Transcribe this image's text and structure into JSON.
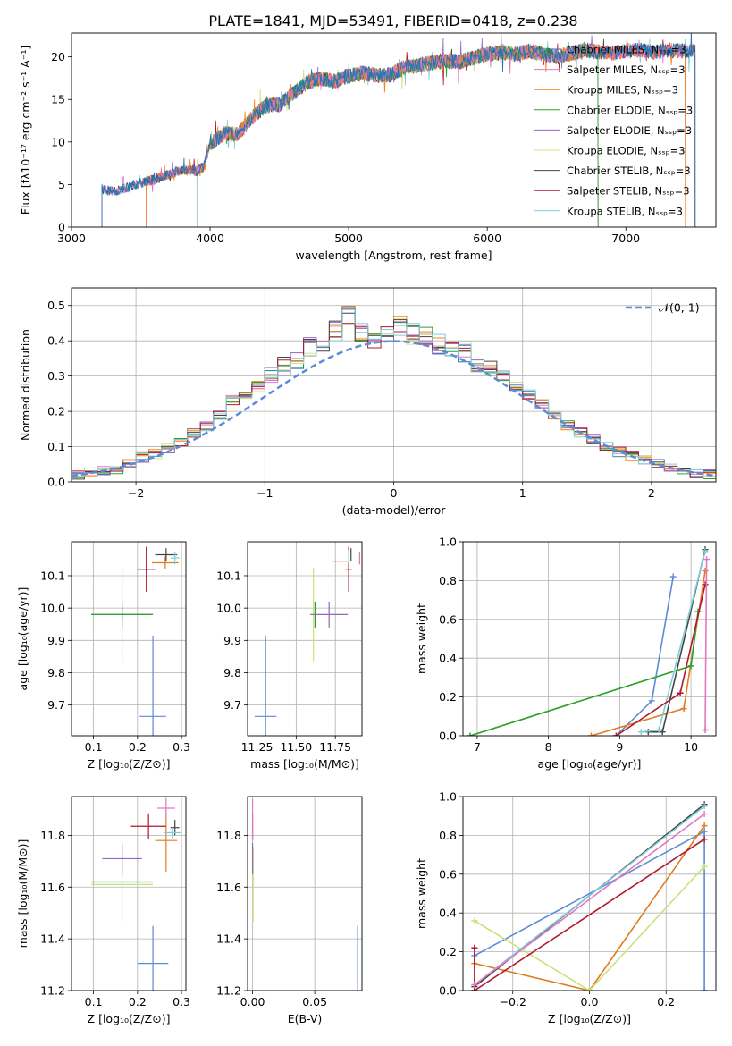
{
  "figure_title": "PLATE=1841, MJD=53491, FIBERID=0418, z=0.238",
  "colors": {
    "chabrier_miles": "#1f77b4",
    "salpeter_miles": "#e377c2",
    "kroupa_miles": "#ff7f0e",
    "chabrier_elodie": "#2ca02c",
    "salpeter_elodie": "#9467bd",
    "kroupa_elodie": "#dbdb8d",
    "chabrier_stelib": "#444444",
    "salpeter_stelib": "#b2182b",
    "kroupa_stelib": "#7fcdda",
    "blue": "#5b8bd6",
    "orange": "#e07b1f",
    "lime": "#c8e27a"
  },
  "chart_data": [
    {
      "id": "spectrum",
      "type": "line",
      "xlabel": "wavelength [Angstrom, rest frame]",
      "ylabel": "Flux [fλ10⁻¹⁷ erg cm⁻² s⁻¹ A⁻¹]",
      "xlim": [
        3000,
        7650
      ],
      "ylim": [
        0,
        22.8
      ],
      "xticks": [
        3000,
        4000,
        5000,
        6000,
        7000
      ],
      "yticks": [
        0,
        5,
        10,
        15,
        20
      ],
      "grid": false,
      "legend_position": "top-right",
      "legend": [
        "Chabrier MILES, N_SSP=3",
        "Salpeter MILES, N_SSP=3",
        "Kroupa MILES, N_SSP=3",
        "Chabrier ELODIE, N_SSP=3",
        "Salpeter ELODIE, N_SSP=3",
        "Kroupa ELODIE, N_SSP=3",
        "Chabrier STELIB, N_SSP=3",
        "Salpeter STELIB, N_SSP=3",
        "Kroupa STELIB, N_SSP=3"
      ],
      "x": [
        3220,
        3300,
        3400,
        3500,
        3600,
        3700,
        3800,
        3900,
        3950,
        4000,
        4100,
        4200,
        4300,
        4400,
        4500,
        4600,
        4700,
        4800,
        4900,
        5000,
        5100,
        5200,
        5300,
        5400,
        5500,
        5600,
        5700,
        5800,
        5900,
        6000,
        6100,
        6200,
        6300,
        6400,
        6500,
        6600,
        6700,
        6800,
        6900,
        7000,
        7100,
        7200,
        7300,
        7400
      ],
      "y": [
        4.5,
        4.2,
        4.6,
        5.2,
        5.6,
        6.2,
        6.7,
        6.6,
        7.0,
        9.8,
        11.0,
        10.9,
        12.8,
        14.3,
        14.4,
        15.7,
        17.0,
        17.5,
        17.1,
        17.8,
        18.1,
        17.8,
        17.9,
        18.7,
        19.0,
        19.3,
        19.5,
        19.4,
        19.9,
        20.3,
        20.5,
        20.3,
        20.7,
        20.3,
        20.1,
        20.4,
        20.8,
        20.6,
        20.4,
        20.7,
        20.8,
        20.5,
        20.8,
        20.7
      ],
      "series": [
        {
          "name": "Chabrier MILES, N_SSP=3",
          "start": 3220,
          "end": 7500
        },
        {
          "name": "Salpeter MILES, N_SSP=3",
          "start": 3220,
          "end": 7500
        },
        {
          "name": "Kroupa MILES, N_SSP=3",
          "start": 3540,
          "end": 7430
        },
        {
          "name": "Chabrier ELODIE, N_SSP=3",
          "start": 3910,
          "end": 6800
        },
        {
          "name": "Salpeter ELODIE, N_SSP=3",
          "start": 3910,
          "end": 6800
        },
        {
          "name": "Kroupa ELODIE, N_SSP=3",
          "start": 3910,
          "end": 6800
        },
        {
          "name": "Chabrier STELIB, N_SSP=3",
          "start": 3220,
          "end": 7500
        },
        {
          "name": "Salpeter STELIB, N_SSP=3",
          "start": 3540,
          "end": 7430
        },
        {
          "name": "Kroupa STELIB, N_SSP=3",
          "start": 3220,
          "end": 7500
        }
      ]
    },
    {
      "id": "residuals",
      "type": "bar",
      "xlabel": "(data-model)/error",
      "ylabel": "Normed distribution",
      "xlim": [
        -2.5,
        2.5
      ],
      "ylim": [
        0,
        0.55
      ],
      "xticks": [
        -2,
        -1,
        0,
        1,
        2
      ],
      "yticks": [
        0.0,
        0.1,
        0.2,
        0.3,
        0.4,
        0.5
      ],
      "grid": true,
      "legend_position": "top-right",
      "legend": [
        "𝒩(0, 1)"
      ],
      "bin_edges_step": 0.1,
      "bin_centers": [
        -2.45,
        -2.35,
        -2.25,
        -2.15,
        -2.05,
        -1.95,
        -1.85,
        -1.75,
        -1.65,
        -1.55,
        -1.45,
        -1.35,
        -1.25,
        -1.15,
        -1.05,
        -0.95,
        -0.85,
        -0.75,
        -0.65,
        -0.55,
        -0.45,
        -0.35,
        -0.25,
        -0.15,
        -0.05,
        0.05,
        0.15,
        0.25,
        0.35,
        0.45,
        0.55,
        0.65,
        0.75,
        0.85,
        0.95,
        1.05,
        1.15,
        1.25,
        1.35,
        1.45,
        1.55,
        1.65,
        1.75,
        1.85,
        1.95,
        2.05,
        2.15,
        2.25,
        2.35,
        2.45
      ],
      "values": [
        0.02,
        0.025,
        0.03,
        0.035,
        0.05,
        0.07,
        0.08,
        0.095,
        0.115,
        0.14,
        0.16,
        0.19,
        0.23,
        0.25,
        0.27,
        0.31,
        0.33,
        0.35,
        0.38,
        0.4,
        0.43,
        0.47,
        0.42,
        0.41,
        0.42,
        0.44,
        0.42,
        0.41,
        0.39,
        0.38,
        0.37,
        0.34,
        0.32,
        0.3,
        0.27,
        0.25,
        0.22,
        0.19,
        0.16,
        0.14,
        0.12,
        0.1,
        0.085,
        0.07,
        0.06,
        0.05,
        0.04,
        0.03,
        0.025,
        0.02
      ],
      "normal_curve": {
        "mean": 0,
        "sigma": 1
      }
    },
    {
      "id": "age_vs_Z",
      "type": "scatter",
      "xlabel": "Z [log₁₀(Z/Z⊙)]",
      "ylabel": "age  [log₁₀(age/yr)]",
      "xlim": [
        0.05,
        0.31
      ],
      "ylim": [
        9.605,
        10.205
      ],
      "xticks": [
        0.1,
        0.2,
        0.3
      ],
      "yticks": [
        9.7,
        9.8,
        9.9,
        10.0,
        10.1
      ],
      "grid": true,
      "points": [
        {
          "series": "Chabrier MILES",
          "color": "blue",
          "x": 0.235,
          "y": 9.665,
          "xerr": 0.03,
          "yerr": 0.25
        },
        {
          "series": "Kroupa ELODIE",
          "color": "lime",
          "x": 0.165,
          "y": 9.98,
          "xerr": 0.07,
          "yerr": 0.145
        },
        {
          "series": "Salpeter ELODIE",
          "color": "salpeter_elodie",
          "x": 0.165,
          "y": 9.98,
          "xerr": 0.07,
          "yerr": 0.04
        },
        {
          "series": "Chabrier ELODIE",
          "color": "chabrier_elodie",
          "x": 0.165,
          "y": 9.98,
          "xerr": 0.07,
          "yerr": 0.02
        },
        {
          "series": "Salpeter STELIB",
          "color": "salpeter_stelib",
          "x": 0.22,
          "y": 10.12,
          "xerr": 0.02,
          "yerr": 0.07
        },
        {
          "series": "Kroupa MILES",
          "color": "orange",
          "x": 0.263,
          "y": 10.14,
          "xerr": 0.03,
          "yerr": 0.02
        },
        {
          "series": "Chabrier STELIB",
          "color": "chabrier_stelib",
          "x": 0.265,
          "y": 10.165,
          "xerr": 0.025,
          "yerr": 0.02
        },
        {
          "series": "Kroupa STELIB",
          "color": "kroupa_stelib",
          "x": 0.285,
          "y": 10.155,
          "xerr": 0.01,
          "yerr": 0.02
        }
      ]
    },
    {
      "id": "age_vs_mass",
      "type": "scatter",
      "xlabel": "mass [log₁₀(M/M⊙)]",
      "ylabel": "",
      "xlim": [
        11.19,
        11.92
      ],
      "ylim": [
        9.605,
        10.205
      ],
      "xticks": [
        11.25,
        11.5,
        11.75
      ],
      "yticks": [
        9.7,
        9.8,
        9.9,
        10.0,
        10.1
      ],
      "grid": true,
      "points": [
        {
          "series": "Chabrier MILES",
          "color": "blue",
          "x": 11.305,
          "y": 9.665,
          "xerr": 0.07,
          "yerr": 0.25
        },
        {
          "series": "Kroupa ELODIE",
          "color": "lime",
          "x": 11.61,
          "y": 9.98,
          "xerr": 0.0,
          "yerr": 0.145
        },
        {
          "series": "Chabrier ELODIE",
          "color": "chabrier_elodie",
          "x": 11.62,
          "y": 9.98,
          "xerr": 0.0,
          "yerr": 0.04
        },
        {
          "series": "Salpeter ELODIE",
          "color": "salpeter_elodie",
          "x": 11.71,
          "y": 9.98,
          "xerr": 0.12,
          "yerr": 0.04
        },
        {
          "series": "Kroupa MILES",
          "color": "orange",
          "x": 11.78,
          "y": 10.145,
          "xerr": 0.05,
          "yerr": 0.0
        },
        {
          "series": "Salpeter STELIB",
          "color": "salpeter_stelib",
          "x": 11.835,
          "y": 10.12,
          "xerr": 0.02,
          "yerr": 0.07
        },
        {
          "series": "Chabrier STELIB",
          "color": "chabrier_stelib",
          "x": 11.85,
          "y": 10.165,
          "xerr": 0.0,
          "yerr": 0.02
        },
        {
          "series": "Kroupa STELIB",
          "color": "kroupa_stelib",
          "x": 11.835,
          "y": 10.16,
          "xerr": 0.0,
          "yerr": 0.02
        },
        {
          "series": "Salpeter MILES",
          "color": "salpeter_miles",
          "x": 11.905,
          "y": 10.155,
          "xerr": 0.0,
          "yerr": 0.02
        }
      ]
    },
    {
      "id": "weight_vs_age",
      "type": "line",
      "xlabel": "age  [log₁₀(age/yr)]",
      "ylabel": "mass weight",
      "xlim": [
        6.8,
        10.35
      ],
      "ylim": [
        0,
        1.0
      ],
      "xticks": [
        7,
        8,
        9,
        10
      ],
      "yticks": [
        0.0,
        0.2,
        0.4,
        0.6,
        0.8,
        1.0
      ],
      "grid": true,
      "series": [
        {
          "name": "Chabrier MILES",
          "color": "blue",
          "x": [
            8.95,
            9.45,
            9.75
          ],
          "y": [
            0.0,
            0.18,
            0.82
          ]
        },
        {
          "name": "Kroupa MILES",
          "color": "orange",
          "x": [
            8.6,
            9.9,
            10.2
          ],
          "y": [
            0.0,
            0.14,
            0.85
          ]
        },
        {
          "name": "Kroupa ELODIE",
          "color": "lime",
          "x": [
            6.9,
            10.0,
            10.1
          ],
          "y": [
            0.0,
            0.36,
            0.64
          ]
        },
        {
          "name": "Chabrier ELODIE",
          "color": "chabrier_elodie",
          "x": [
            6.9,
            10.0,
            10.1
          ],
          "y": [
            0.0,
            0.36,
            0.64
          ]
        },
        {
          "name": "Chabrier STELIB",
          "color": "chabrier_stelib",
          "x": [
            9.4,
            9.6,
            10.2
          ],
          "y": [
            0.02,
            0.02,
            0.96
          ]
        },
        {
          "name": "Kroupa STELIB",
          "color": "kroupa_stelib",
          "x": [
            9.3,
            9.55,
            10.2
          ],
          "y": [
            0.02,
            0.03,
            0.95
          ]
        },
        {
          "name": "Salpeter STELIB",
          "color": "salpeter_stelib",
          "x": [
            8.95,
            9.85,
            10.2
          ],
          "y": [
            0.0,
            0.22,
            0.78
          ]
        },
        {
          "name": "Salpeter MILES",
          "color": "salpeter_miles",
          "x": [
            10.2,
            10.2,
            10.22
          ],
          "y": [
            0.03,
            0.03,
            0.91
          ]
        }
      ]
    },
    {
      "id": "mass_vs_Z",
      "type": "scatter",
      "xlabel": "Z [log₁₀(Z/Z⊙)]",
      "ylabel": "mass [log₁₀(M/M⊙)]",
      "xlim": [
        0.05,
        0.31
      ],
      "ylim": [
        11.2,
        11.95
      ],
      "xticks": [
        0.1,
        0.2,
        0.3
      ],
      "yticks": [
        11.2,
        11.4,
        11.6,
        11.8
      ],
      "grid": true,
      "points": [
        {
          "series": "Chabrier MILES",
          "color": "blue",
          "x": 0.235,
          "y": 11.305,
          "xerr": 0.035,
          "yerr": 0.145
        },
        {
          "series": "Kroupa ELODIE",
          "color": "lime",
          "x": 0.165,
          "y": 11.61,
          "xerr": 0.07,
          "yerr": 0.145
        },
        {
          "series": "Chabrier ELODIE",
          "color": "chabrier_elodie",
          "x": 0.165,
          "y": 11.62,
          "xerr": 0.07,
          "yerr": 0.0
        },
        {
          "series": "Salpeter ELODIE",
          "color": "salpeter_elodie",
          "x": 0.165,
          "y": 11.71,
          "xerr": 0.045,
          "yerr": 0.06
        },
        {
          "series": "Kroupa MILES",
          "color": "orange",
          "x": 0.265,
          "y": 11.78,
          "xerr": 0.025,
          "yerr": 0.12
        },
        {
          "series": "Salpeter STELIB",
          "color": "salpeter_stelib",
          "x": 0.225,
          "y": 11.835,
          "xerr": 0.04,
          "yerr": 0.05
        },
        {
          "series": "Chabrier STELIB",
          "color": "chabrier_stelib",
          "x": 0.285,
          "y": 11.83,
          "xerr": 0.01,
          "yerr": 0.03
        },
        {
          "series": "Kroupa STELIB",
          "color": "kroupa_stelib",
          "x": 0.28,
          "y": 11.81,
          "xerr": 0.02,
          "yerr": 0.02
        },
        {
          "series": "Salpeter MILES",
          "color": "salpeter_miles",
          "x": 0.265,
          "y": 11.905,
          "xerr": 0.02,
          "yerr": 0.04
        }
      ]
    },
    {
      "id": "mass_vs_ebv",
      "type": "scatter",
      "xlabel": "E(B-V)",
      "ylabel": "",
      "xlim": [
        -0.004,
        0.088
      ],
      "ylim": [
        11.2,
        11.95
      ],
      "xticks": [
        0.0,
        0.05
      ],
      "yticks": [
        11.2,
        11.4,
        11.6,
        11.8
      ],
      "grid": true,
      "points": [
        {
          "series": "Chabrier MILES",
          "color": "blue",
          "x": 0.0845,
          "y": 11.305,
          "xerr": 0.0,
          "yerr": 0.145
        },
        {
          "series": "Kroupa ELODIE",
          "color": "lime",
          "x": 0.0005,
          "y": 11.61,
          "xerr": 0.0,
          "yerr": 0.145
        },
        {
          "series": "Salpeter ELODIE",
          "color": "salpeter_elodie",
          "x": 0.0,
          "y": 11.71,
          "xerr": 0.0,
          "yerr": 0.06
        },
        {
          "series": "Salpeter STELIB",
          "color": "salpeter_stelib",
          "x": 0.0,
          "y": 11.835,
          "xerr": 0.0,
          "yerr": 0.05
        },
        {
          "series": "Kroupa STELIB",
          "color": "kroupa_stelib",
          "x": 0.0,
          "y": 11.81,
          "xerr": 0.0,
          "yerr": 0.03
        },
        {
          "series": "Salpeter MILES",
          "color": "salpeter_miles",
          "x": 0.0,
          "y": 11.86,
          "xerr": 0.0,
          "yerr": 0.08
        }
      ]
    },
    {
      "id": "weight_vs_Z",
      "type": "line",
      "xlabel": "Z [log₁₀(Z/Z⊙)]",
      "ylabel": "mass weight",
      "xlim": [
        -0.33,
        0.33
      ],
      "ylim": [
        0,
        1.0
      ],
      "xticks": [
        -0.2,
        0.0,
        0.2
      ],
      "yticks": [
        0.0,
        0.2,
        0.4,
        0.6,
        0.8,
        1.0
      ],
      "grid": true,
      "series": [
        {
          "name": "Chabrier MILES",
          "color": "blue",
          "x": [
            -0.3,
            0.3,
            0.3
          ],
          "y": [
            0.18,
            0.82,
            0.0
          ]
        },
        {
          "name": "Kroupa MILES",
          "color": "orange",
          "x": [
            -0.3,
            0.0,
            0.3
          ],
          "y": [
            0.14,
            0.0,
            0.85
          ]
        },
        {
          "name": "Kroupa ELODIE",
          "color": "lime",
          "x": [
            -0.3,
            0.0,
            0.3
          ],
          "y": [
            0.36,
            0.0,
            0.64
          ]
        },
        {
          "name": "Chabrier STELIB",
          "color": "chabrier_stelib",
          "x": [
            -0.3,
            0.3
          ],
          "y": [
            0.02,
            0.96
          ]
        },
        {
          "name": "Kroupa STELIB",
          "color": "kroupa_stelib",
          "x": [
            -0.3,
            0.3
          ],
          "y": [
            0.03,
            0.95
          ]
        },
        {
          "name": "Salpeter STELIB",
          "color": "salpeter_stelib",
          "x": [
            -0.3,
            -0.3,
            0.3
          ],
          "y": [
            0.22,
            0.0,
            0.78
          ]
        },
        {
          "name": "Salpeter MILES",
          "color": "salpeter_miles",
          "x": [
            -0.3,
            0.3
          ],
          "y": [
            0.03,
            0.91
          ]
        }
      ]
    }
  ]
}
